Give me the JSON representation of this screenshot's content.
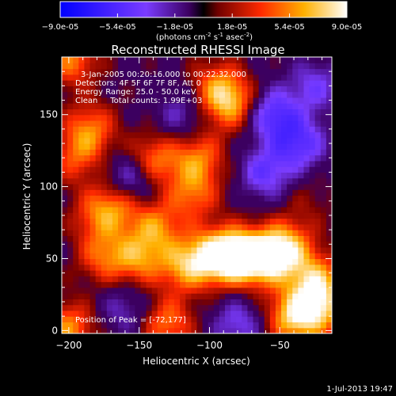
{
  "colorbar": {
    "ticks": [
      "-9.0e-05",
      "-5.4e-05",
      "-1.8e-05",
      "1.8e-05",
      "5.4e-05",
      "9.0e-05"
    ],
    "range": [
      -9e-05,
      9e-05
    ],
    "units_prefix": "(photons cm",
    "units_exp1": "-2",
    "units_mid": " s",
    "units_exp2": "-1",
    "units_suffix": " asec",
    "units_exp3": "-2",
    "units_close": ")"
  },
  "chart_data": {
    "type": "heatmap",
    "title": "Reconstructed RHESSI Image",
    "xlabel": "Heliocentric X (arcsec)",
    "ylabel": "Heliocentric Y (arcsec)",
    "xlim": [
      -205,
      -13
    ],
    "ylim": [
      -2,
      190
    ],
    "xticks": [
      -200,
      -150,
      -100,
      -50
    ],
    "yticks": [
      0,
      50,
      100,
      150
    ],
    "colormap": "RHESSI thermal (blue-purple-red-yellow-white)",
    "annotations": {
      "line1": "3-Jan-2005 00:20:16.000 to 00:22:32.000",
      "line2": "Detectors: 4F 5F 6F 7F 8F, Att 0",
      "line3": "Energy Range: 25.0 - 50.0 keV",
      "line4": "Clean     Total counts: 1.99E+03",
      "peak": "Position of Peak = [-72,177]"
    },
    "peak_position": [
      -72,
      177
    ],
    "blobs": [
      {
        "x": -80,
        "y": 52,
        "v": 1.0
      },
      {
        "x": -98,
        "y": 52,
        "v": 0.75
      },
      {
        "x": -60,
        "y": 50,
        "v": 0.8
      },
      {
        "x": -45,
        "y": 58,
        "v": 0.7
      },
      {
        "x": -150,
        "y": 50,
        "v": 0.55
      },
      {
        "x": -175,
        "y": 52,
        "v": 0.5
      },
      {
        "x": -118,
        "y": 45,
        "v": 0.6
      },
      {
        "x": -138,
        "y": 72,
        "v": 0.55
      },
      {
        "x": -140,
        "y": 118,
        "v": 0.6
      },
      {
        "x": -108,
        "y": 120,
        "v": 0.55
      },
      {
        "x": -112,
        "y": 95,
        "v": 0.5
      },
      {
        "x": -165,
        "y": 88,
        "v": 0.5
      },
      {
        "x": -180,
        "y": 80,
        "v": 0.4
      },
      {
        "x": -185,
        "y": 140,
        "v": 0.55
      },
      {
        "x": -195,
        "y": 120,
        "v": 0.4
      },
      {
        "x": -85,
        "y": 158,
        "v": 0.65
      },
      {
        "x": -95,
        "y": 170,
        "v": 0.45
      },
      {
        "x": -40,
        "y": 10,
        "v": 0.8
      },
      {
        "x": -25,
        "y": 35,
        "v": 0.7
      },
      {
        "x": -20,
        "y": 15,
        "v": 0.6
      },
      {
        "x": -130,
        "y": 5,
        "v": 0.55
      },
      {
        "x": -200,
        "y": 2,
        "v": 0.6
      },
      {
        "x": -198,
        "y": 188,
        "v": 0.55
      },
      {
        "x": -30,
        "y": 90,
        "v": 0.15
      },
      {
        "x": -60,
        "y": 110,
        "v": -0.5
      },
      {
        "x": -35,
        "y": 130,
        "v": -0.55
      },
      {
        "x": -55,
        "y": 150,
        "v": -0.6
      },
      {
        "x": -155,
        "y": 105,
        "v": -0.55
      },
      {
        "x": -80,
        "y": 5,
        "v": -0.4
      },
      {
        "x": -160,
        "y": 15,
        "v": -0.3
      },
      {
        "x": -25,
        "y": 170,
        "v": -0.4
      },
      {
        "x": -120,
        "y": 150,
        "v": -0.3
      }
    ]
  },
  "footer": {
    "timestamp": "1-Jul-2013 19:47"
  }
}
